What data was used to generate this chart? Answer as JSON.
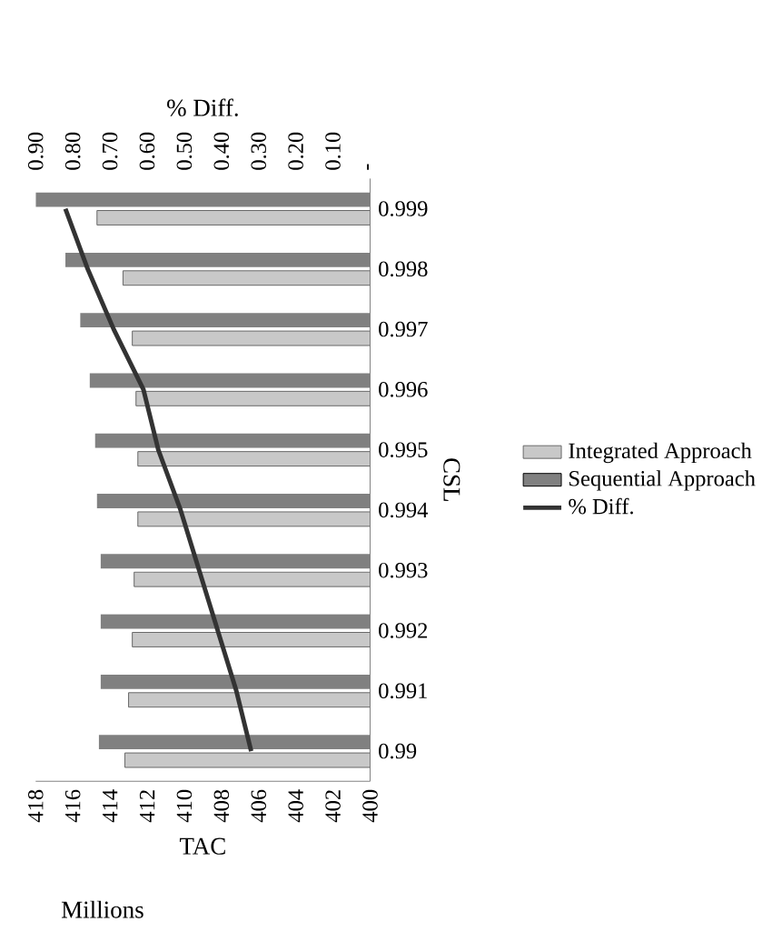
{
  "chart_data": {
    "type": "bar",
    "orientation": "horizontal",
    "xlabel": "TAC",
    "ylabel": "CSL",
    "x2label": "% Diff.",
    "annotations": [
      "Millions"
    ],
    "categories": [
      "0.999",
      "0.998",
      "0.997",
      "0.996",
      "0.995",
      "0.994",
      "0.993",
      "0.992",
      "0.991",
      "0.99"
    ],
    "series": [
      {
        "name": "Integrated Approach",
        "color": "#c8c8c8",
        "values": [
          414.7,
          413.3,
          412.8,
          412.6,
          412.5,
          412.5,
          412.7,
          412.8,
          413.0,
          413.2
        ]
      },
      {
        "name": "Sequential Approach",
        "color": "#808080",
        "values": [
          418.0,
          416.4,
          415.6,
          415.1,
          414.8,
          414.7,
          414.5,
          414.5,
          414.5,
          414.6
        ]
      },
      {
        "name": "% Diff.",
        "type": "line",
        "axis": "x2",
        "color": "#333333",
        "values": [
          0.82,
          0.76,
          0.69,
          0.61,
          0.57,
          0.51,
          0.46,
          0.41,
          0.36,
          0.32
        ]
      }
    ],
    "xlim": [
      418,
      400
    ],
    "xticks": [
      418,
      416,
      414,
      412,
      410,
      408,
      406,
      404,
      402,
      400
    ],
    "x2lim": [
      0.9,
      0
    ],
    "x2ticks": [
      {
        "value": 0.9,
        "label": "0.90"
      },
      {
        "value": 0.8,
        "label": "0.80"
      },
      {
        "value": 0.7,
        "label": "0.70"
      },
      {
        "value": 0.6,
        "label": "0.60"
      },
      {
        "value": 0.5,
        "label": "0.50"
      },
      {
        "value": 0.4,
        "label": "0.40"
      },
      {
        "value": 0.3,
        "label": "0.30"
      },
      {
        "value": 0.2,
        "label": "0.20"
      },
      {
        "value": 0.1,
        "label": "0.10"
      },
      {
        "value": 0,
        "label": "-"
      }
    ],
    "legend": "right",
    "grid": false,
    "marker": "none"
  }
}
